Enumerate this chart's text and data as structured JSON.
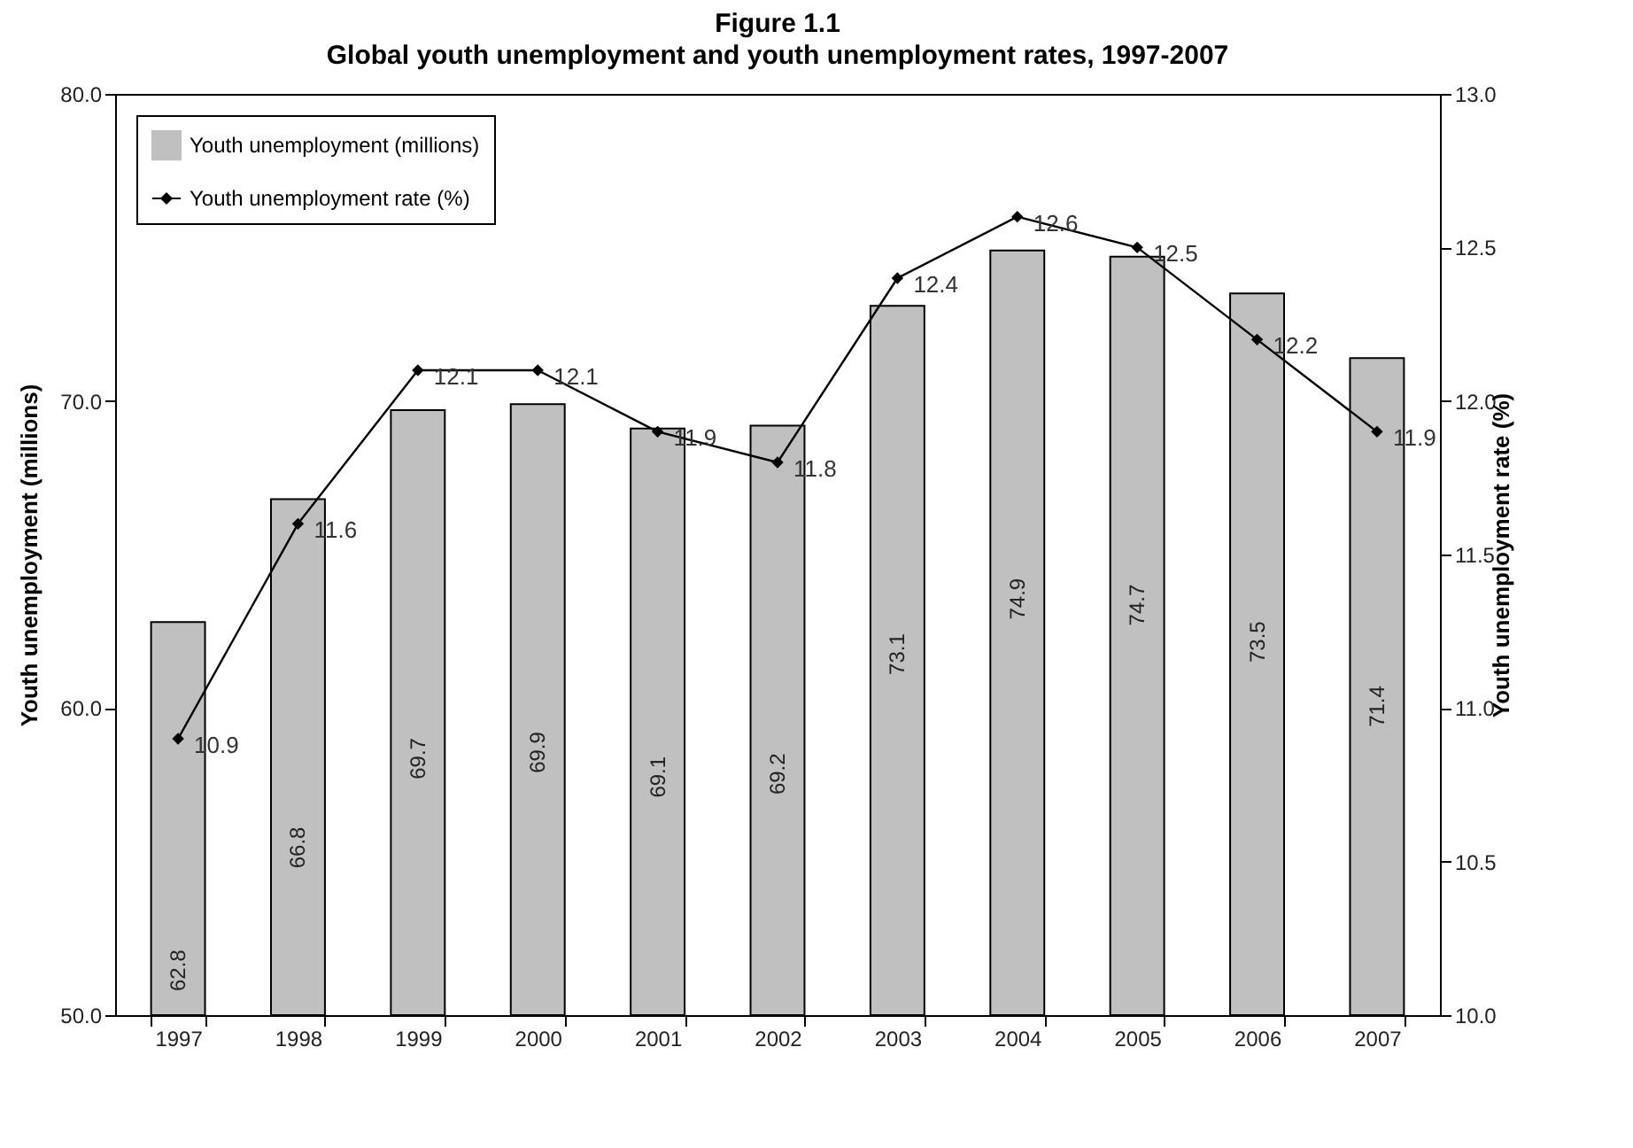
{
  "chart_data": {
    "type": "bar",
    "title": "Figure 1.1",
    "subtitle": "Global youth unemployment and youth unemployment rates, 1997-2007",
    "ylabel": "Youth unemployment (millions)",
    "y2label": "Youth unemployment rate (%)",
    "categories": [
      "1997",
      "1998",
      "1999",
      "2000",
      "2001",
      "2002",
      "2003",
      "2004",
      "2005",
      "2006",
      "2007"
    ],
    "series": [
      {
        "name": "Youth unemployment (millions)",
        "color": "#c0c0c0",
        "values": [
          62.8,
          66.8,
          69.7,
          69.9,
          69.1,
          69.2,
          73.1,
          74.9,
          74.7,
          73.5,
          71.4
        ]
      },
      {
        "name": "Youth unemployment rate (%)",
        "type": "line",
        "axis": "y2",
        "color": "#000000",
        "values": [
          10.9,
          11.6,
          12.1,
          12.1,
          11.9,
          11.8,
          12.4,
          12.6,
          12.5,
          12.2,
          11.9
        ]
      }
    ],
    "ylim": [
      50,
      80
    ],
    "yticks": [
      {
        "value": 50,
        "label": "50.0"
      },
      {
        "value": 60,
        "label": "60.0"
      },
      {
        "value": 70,
        "label": "70.0"
      },
      {
        "value": 80,
        "label": "80.0"
      }
    ],
    "y2lim": [
      10,
      13
    ],
    "y2ticks": [
      {
        "value": 10,
        "label": "10.0"
      },
      {
        "value": 10.5,
        "label": "10.5"
      },
      {
        "value": 11,
        "label": "11.0"
      },
      {
        "value": 11.5,
        "label": "11.5"
      },
      {
        "value": 12,
        "label": "12.0"
      },
      {
        "value": 12.5,
        "label": "12.5"
      },
      {
        "value": 13,
        "label": "13.0"
      }
    ],
    "data_labels": true,
    "grid": false,
    "legend": "top left",
    "marker": "diamond",
    "line_style": "solid"
  }
}
